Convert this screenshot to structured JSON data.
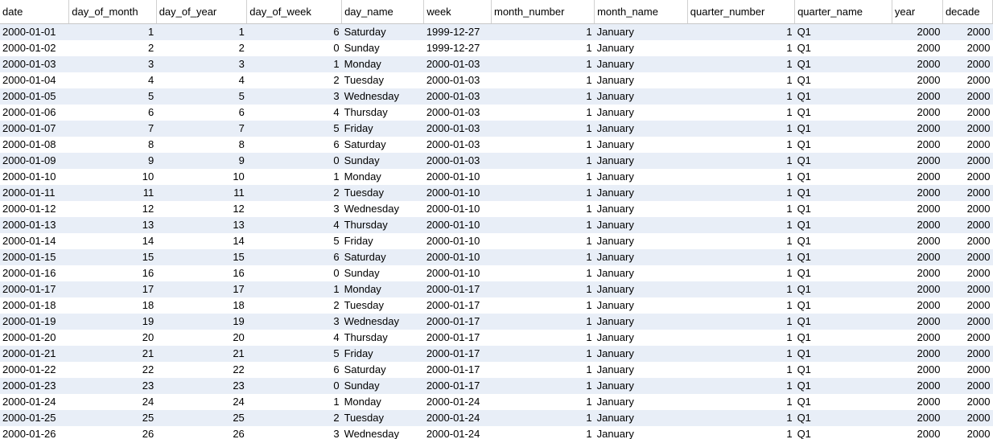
{
  "columns": [
    "date",
    "day_of_month",
    "day_of_year",
    "day_of_week",
    "day_name",
    "week",
    "month_number",
    "month_name",
    "quarter_number",
    "quarter_name",
    "year",
    "decade"
  ],
  "column_align": [
    "left",
    "right",
    "right",
    "right",
    "left",
    "left",
    "right",
    "left",
    "right",
    "left",
    "right",
    "right"
  ],
  "colors": {
    "stripe": "#e8eef7",
    "background": "#ffffff",
    "border": "#d0d0d0"
  },
  "rows": [
    [
      "2000-01-01",
      "1",
      "1",
      "6",
      "Saturday",
      "1999-12-27",
      "1",
      "January",
      "1",
      "Q1",
      "2000",
      "2000"
    ],
    [
      "2000-01-02",
      "2",
      "2",
      "0",
      "Sunday",
      "1999-12-27",
      "1",
      "January",
      "1",
      "Q1",
      "2000",
      "2000"
    ],
    [
      "2000-01-03",
      "3",
      "3",
      "1",
      "Monday",
      "2000-01-03",
      "1",
      "January",
      "1",
      "Q1",
      "2000",
      "2000"
    ],
    [
      "2000-01-04",
      "4",
      "4",
      "2",
      "Tuesday",
      "2000-01-03",
      "1",
      "January",
      "1",
      "Q1",
      "2000",
      "2000"
    ],
    [
      "2000-01-05",
      "5",
      "5",
      "3",
      "Wednesday",
      "2000-01-03",
      "1",
      "January",
      "1",
      "Q1",
      "2000",
      "2000"
    ],
    [
      "2000-01-06",
      "6",
      "6",
      "4",
      "Thursday",
      "2000-01-03",
      "1",
      "January",
      "1",
      "Q1",
      "2000",
      "2000"
    ],
    [
      "2000-01-07",
      "7",
      "7",
      "5",
      "Friday",
      "2000-01-03",
      "1",
      "January",
      "1",
      "Q1",
      "2000",
      "2000"
    ],
    [
      "2000-01-08",
      "8",
      "8",
      "6",
      "Saturday",
      "2000-01-03",
      "1",
      "January",
      "1",
      "Q1",
      "2000",
      "2000"
    ],
    [
      "2000-01-09",
      "9",
      "9",
      "0",
      "Sunday",
      "2000-01-03",
      "1",
      "January",
      "1",
      "Q1",
      "2000",
      "2000"
    ],
    [
      "2000-01-10",
      "10",
      "10",
      "1",
      "Monday",
      "2000-01-10",
      "1",
      "January",
      "1",
      "Q1",
      "2000",
      "2000"
    ],
    [
      "2000-01-11",
      "11",
      "11",
      "2",
      "Tuesday",
      "2000-01-10",
      "1",
      "January",
      "1",
      "Q1",
      "2000",
      "2000"
    ],
    [
      "2000-01-12",
      "12",
      "12",
      "3",
      "Wednesday",
      "2000-01-10",
      "1",
      "January",
      "1",
      "Q1",
      "2000",
      "2000"
    ],
    [
      "2000-01-13",
      "13",
      "13",
      "4",
      "Thursday",
      "2000-01-10",
      "1",
      "January",
      "1",
      "Q1",
      "2000",
      "2000"
    ],
    [
      "2000-01-14",
      "14",
      "14",
      "5",
      "Friday",
      "2000-01-10",
      "1",
      "January",
      "1",
      "Q1",
      "2000",
      "2000"
    ],
    [
      "2000-01-15",
      "15",
      "15",
      "6",
      "Saturday",
      "2000-01-10",
      "1",
      "January",
      "1",
      "Q1",
      "2000",
      "2000"
    ],
    [
      "2000-01-16",
      "16",
      "16",
      "0",
      "Sunday",
      "2000-01-10",
      "1",
      "January",
      "1",
      "Q1",
      "2000",
      "2000"
    ],
    [
      "2000-01-17",
      "17",
      "17",
      "1",
      "Monday",
      "2000-01-17",
      "1",
      "January",
      "1",
      "Q1",
      "2000",
      "2000"
    ],
    [
      "2000-01-18",
      "18",
      "18",
      "2",
      "Tuesday",
      "2000-01-17",
      "1",
      "January",
      "1",
      "Q1",
      "2000",
      "2000"
    ],
    [
      "2000-01-19",
      "19",
      "19",
      "3",
      "Wednesday",
      "2000-01-17",
      "1",
      "January",
      "1",
      "Q1",
      "2000",
      "2000"
    ],
    [
      "2000-01-20",
      "20",
      "20",
      "4",
      "Thursday",
      "2000-01-17",
      "1",
      "January",
      "1",
      "Q1",
      "2000",
      "2000"
    ],
    [
      "2000-01-21",
      "21",
      "21",
      "5",
      "Friday",
      "2000-01-17",
      "1",
      "January",
      "1",
      "Q1",
      "2000",
      "2000"
    ],
    [
      "2000-01-22",
      "22",
      "22",
      "6",
      "Saturday",
      "2000-01-17",
      "1",
      "January",
      "1",
      "Q1",
      "2000",
      "2000"
    ],
    [
      "2000-01-23",
      "23",
      "23",
      "0",
      "Sunday",
      "2000-01-17",
      "1",
      "January",
      "1",
      "Q1",
      "2000",
      "2000"
    ],
    [
      "2000-01-24",
      "24",
      "24",
      "1",
      "Monday",
      "2000-01-24",
      "1",
      "January",
      "1",
      "Q1",
      "2000",
      "2000"
    ],
    [
      "2000-01-25",
      "25",
      "25",
      "2",
      "Tuesday",
      "2000-01-24",
      "1",
      "January",
      "1",
      "Q1",
      "2000",
      "2000"
    ],
    [
      "2000-01-26",
      "26",
      "26",
      "3",
      "Wednesday",
      "2000-01-24",
      "1",
      "January",
      "1",
      "Q1",
      "2000",
      "2000"
    ]
  ]
}
